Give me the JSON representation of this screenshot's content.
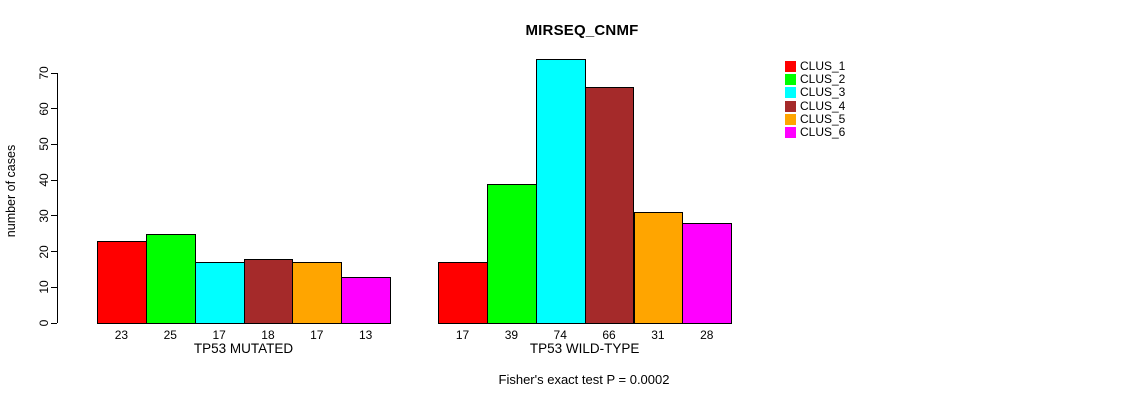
{
  "chart_data": {
    "type": "bar",
    "title": "MIRSEQ_CNMF",
    "ylabel": "number of cases",
    "xlabel": "",
    "categories": [
      "TP53 MUTATED",
      "TP53 WILD-TYPE"
    ],
    "series": [
      {
        "name": "CLUS_1",
        "color": "#FF0000",
        "values": [
          23,
          17
        ]
      },
      {
        "name": "CLUS_2",
        "color": "#00FF00",
        "values": [
          25,
          39
        ]
      },
      {
        "name": "CLUS_3",
        "color": "#00FFFF",
        "values": [
          17,
          74
        ]
      },
      {
        "name": "CLUS_4",
        "color": "#A52A2A",
        "values": [
          18,
          66
        ]
      },
      {
        "name": "CLUS_5",
        "color": "#FFA500",
        "values": [
          17,
          31
        ]
      },
      {
        "name": "CLUS_6",
        "color": "#FF00FF",
        "values": [
          13,
          28
        ]
      }
    ],
    "ylim": [
      0,
      70
    ],
    "yticks": [
      0,
      10,
      20,
      30,
      40,
      50,
      60,
      70
    ],
    "grid": false,
    "bar_value_labels": true,
    "legend_position": "right",
    "annotation": "Fisher's exact test P = 0.0002"
  }
}
